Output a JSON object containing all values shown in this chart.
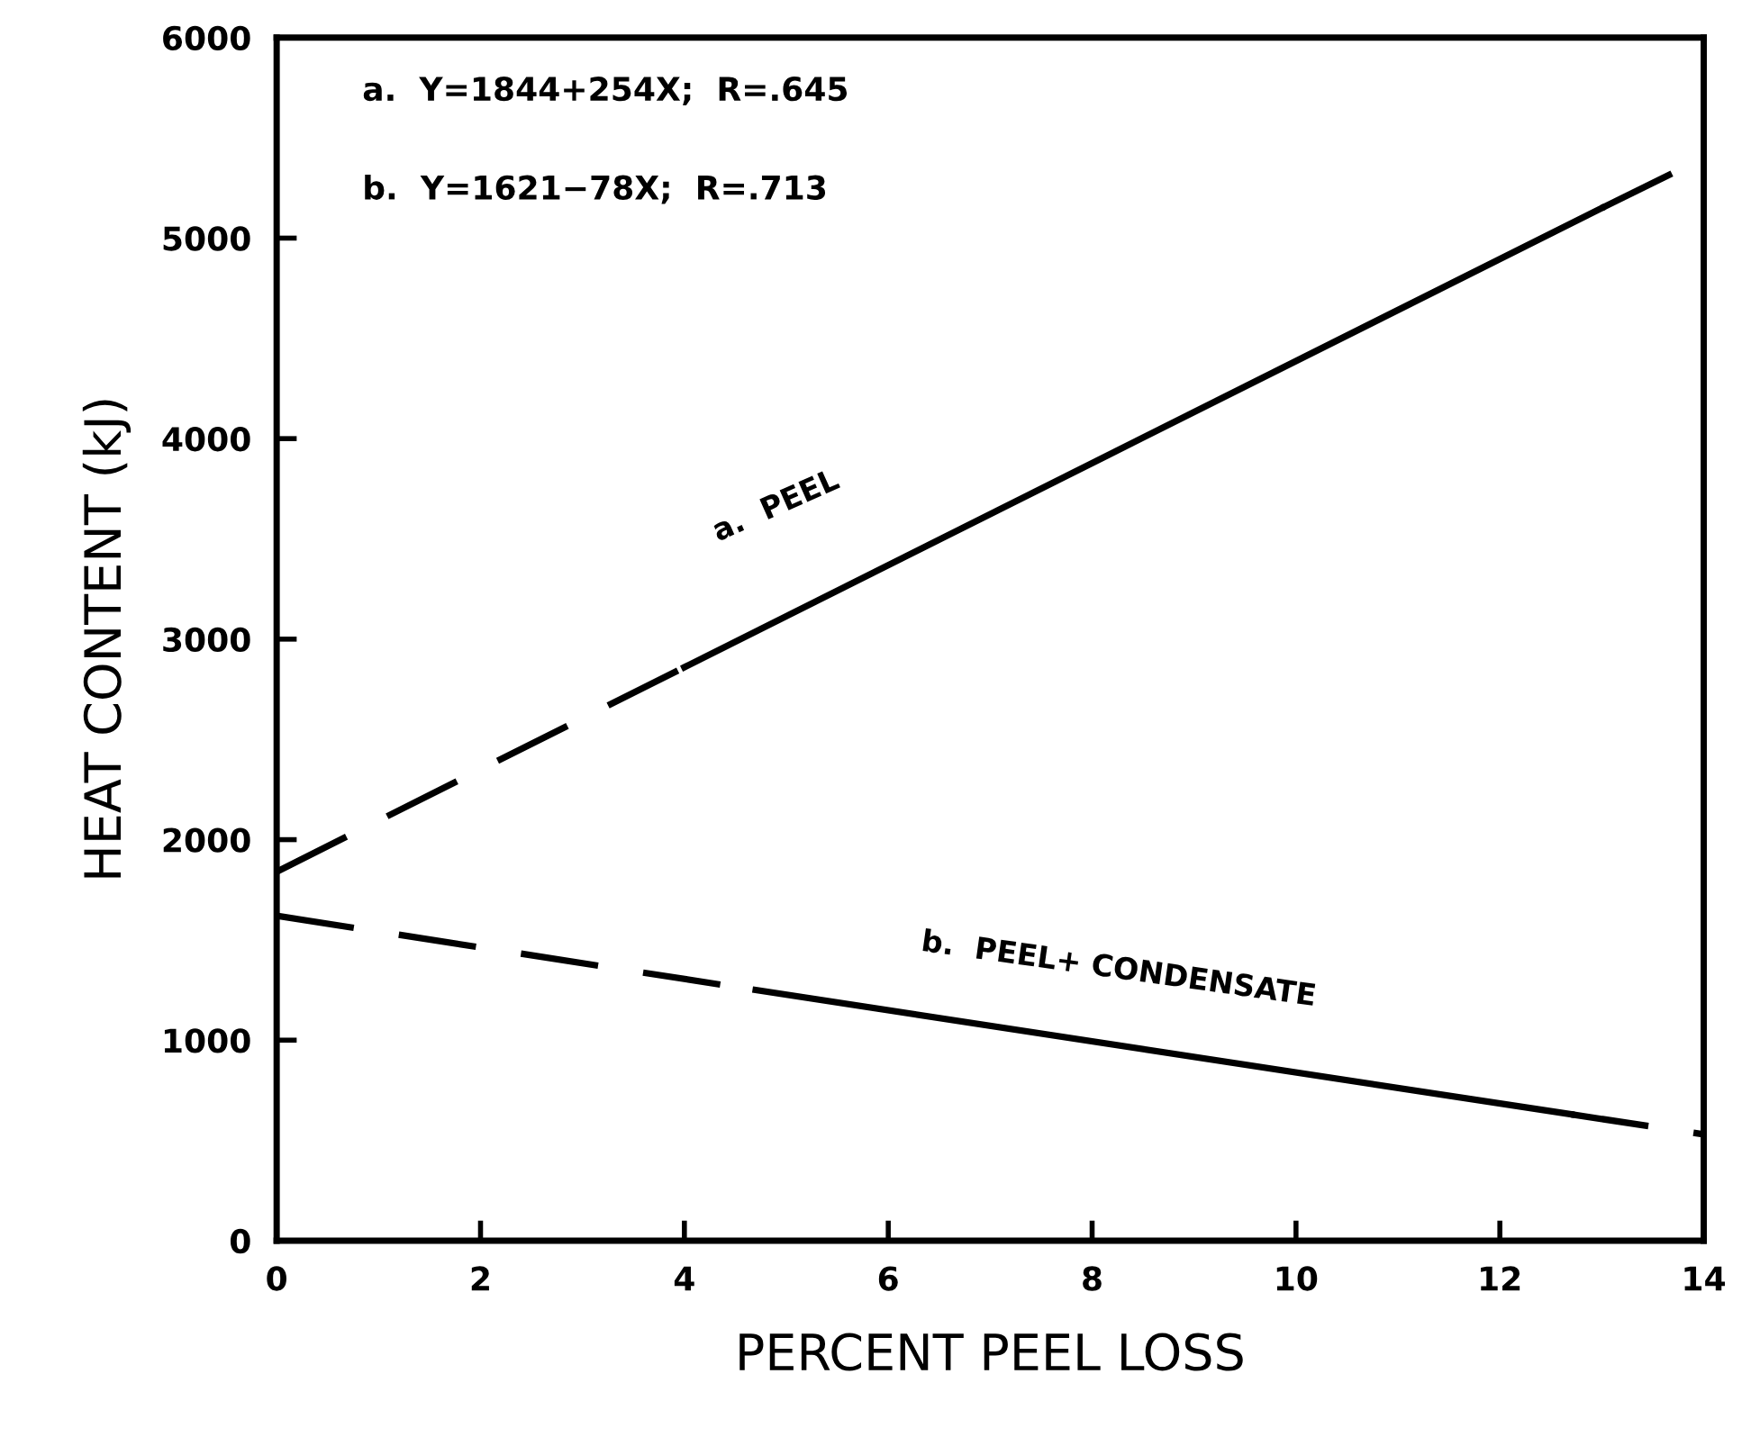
{
  "chart_data": {
    "type": "line",
    "xlabel": "PERCENT PEEL LOSS",
    "ylabel": "HEAT CONTENT (kJ)",
    "xlim": [
      0,
      14
    ],
    "ylim": [
      0,
      6000
    ],
    "xticks": [
      0,
      2,
      4,
      6,
      8,
      10,
      12,
      14
    ],
    "yticks": [
      0,
      1000,
      2000,
      3000,
      4000,
      5000,
      6000
    ],
    "grid": false,
    "legend": false,
    "marker": "none",
    "series": [
      {
        "color": "#000000",
        "line_style": "dashed",
        "x": [
          0,
          4
        ],
        "values": [
          1840,
          2860
        ]
      },
      {
        "color": "#000000",
        "line_style": "solid",
        "x": [
          4,
          13
        ],
        "values": [
          2860,
          5150
        ]
      },
      {
        "color": "#000000",
        "line_style": "dashed",
        "x": [
          13,
          14
        ],
        "values": [
          5150,
          5400
        ]
      },
      {
        "color": "#000000",
        "line_style": "dashed",
        "x": [
          0,
          4.7
        ],
        "values": [
          1620,
          1250
        ]
      },
      {
        "color": "#000000",
        "line_style": "solid",
        "x": [
          4.7,
          12.7
        ],
        "values": [
          1250,
          630
        ]
      },
      {
        "color": "#000000",
        "line_style": "dashed",
        "x": [
          12.7,
          14
        ],
        "values": [
          630,
          530
        ]
      }
    ],
    "annotations": [
      "a.  Y=1844+254X;  R=.645",
      "b.  Y=1621−78X;  R=.713",
      "a.  PEEL",
      "b.  PEEL+ CONDENSATE"
    ]
  }
}
